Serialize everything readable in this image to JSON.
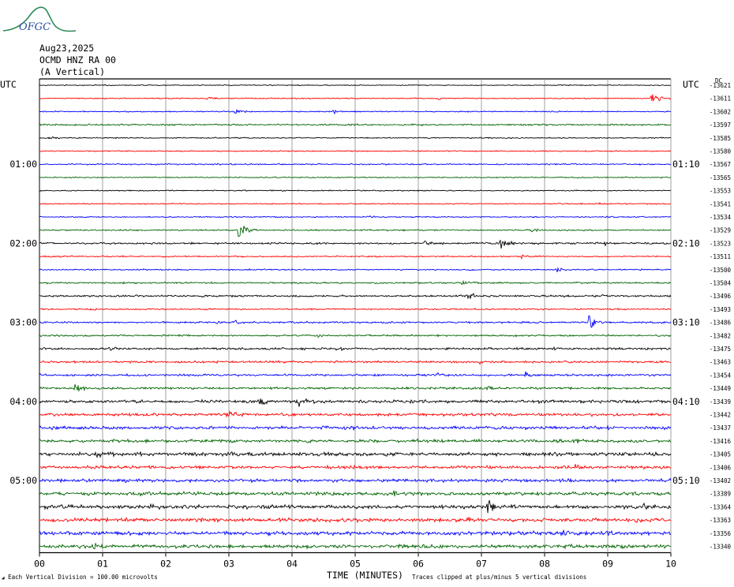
{
  "logo": {
    "text": "OFGC",
    "colors": {
      "wave": "#2e8b57",
      "text": "#2a4f9f"
    }
  },
  "header": {
    "date": "Aug23,2025",
    "station": "OCMD HNZ RA 00",
    "component": "(A Vertical)"
  },
  "axis": {
    "left_tz": "UTC",
    "right_tz": "UTC",
    "right_unit_label": "DC",
    "xlabel": "TIME (MINUTES)",
    "x_ticks": [
      "00",
      "01",
      "02",
      "03",
      "04",
      "05",
      "06",
      "07",
      "08",
      "09",
      "10"
    ]
  },
  "footer": {
    "scale_note": "Each Vertical Division =  100.00 microvolts",
    "clip_note": "Traces clipped at plus/minus 5 vertical divisions"
  },
  "chart_data": {
    "type": "line",
    "title": "",
    "xlabel": "TIME (MINUTES)",
    "ylabel": "",
    "xlim": [
      0,
      10
    ],
    "grid": true,
    "trace_colors": [
      "#000000",
      "#ff0000",
      "#0000ff",
      "#006400"
    ],
    "left_hour_labels": [
      {
        "trace": 6,
        "label": "01:00"
      },
      {
        "trace": 12,
        "label": "02:00"
      },
      {
        "trace": 18,
        "label": "03:00"
      },
      {
        "trace": 24,
        "label": "04:00"
      },
      {
        "trace": 30,
        "label": "05:00"
      }
    ],
    "right_hour_labels": [
      {
        "trace": 6,
        "label": "01:10"
      },
      {
        "trace": 12,
        "label": "02:10"
      },
      {
        "trace": 18,
        "label": "03:10"
      },
      {
        "trace": 24,
        "label": "04:10"
      },
      {
        "trace": 30,
        "label": "05:10"
      }
    ],
    "dc_offsets": [
      -13621,
      -13611,
      -13602,
      -13597,
      -13585,
      -13580,
      -13567,
      -13565,
      -13553,
      -13541,
      -13534,
      -13529,
      -13523,
      -13511,
      -13500,
      -13504,
      -13496,
      -13493,
      -13486,
      -13482,
      -13475,
      -13463,
      -13454,
      -13449,
      -13439,
      -13442,
      -13437,
      -13416,
      -13405,
      -13406,
      -13402,
      -13389,
      -13364,
      -13363,
      -13356,
      -13340
    ],
    "noise_level": [
      0.4,
      0.5,
      0.5,
      0.7,
      0.5,
      0.5,
      0.6,
      0.5,
      0.5,
      0.5,
      0.5,
      0.6,
      0.8,
      0.6,
      0.6,
      0.7,
      0.8,
      0.6,
      0.8,
      0.8,
      0.9,
      0.9,
      0.9,
      1.0,
      1.3,
      1.3,
      1.4,
      1.3,
      1.5,
      1.4,
      1.4,
      1.5,
      1.6,
      1.6,
      1.6,
      1.6
    ],
    "events": [
      {
        "trace": 1,
        "minute": 2.65,
        "amp": 0.8
      },
      {
        "trace": 1,
        "minute": 6.3,
        "amp": 1.0
      },
      {
        "trace": 1,
        "minute": 9.7,
        "amp": 3.5
      },
      {
        "trace": 2,
        "minute": 3.1,
        "amp": 1.2
      },
      {
        "trace": 2,
        "minute": 4.65,
        "amp": 1.5
      },
      {
        "trace": 4,
        "minute": 0.15,
        "amp": 1.0
      },
      {
        "trace": 9,
        "minute": 8.8,
        "amp": 0.8
      },
      {
        "trace": 10,
        "minute": 5.2,
        "amp": 1.0
      },
      {
        "trace": 10,
        "minute": 9.0,
        "amp": 0.8
      },
      {
        "trace": 11,
        "minute": 3.15,
        "amp": 6.0
      },
      {
        "trace": 11,
        "minute": 7.8,
        "amp": 1.0
      },
      {
        "trace": 12,
        "minute": 6.1,
        "amp": 1.5
      },
      {
        "trace": 12,
        "minute": 7.3,
        "amp": 3.0
      },
      {
        "trace": 12,
        "minute": 8.95,
        "amp": 1.0
      },
      {
        "trace": 13,
        "minute": 7.65,
        "amp": 1.5
      },
      {
        "trace": 14,
        "minute": 8.2,
        "amp": 1.5
      },
      {
        "trace": 15,
        "minute": 6.7,
        "amp": 1.5
      },
      {
        "trace": 16,
        "minute": 1.5,
        "amp": 0.8
      },
      {
        "trace": 16,
        "minute": 6.8,
        "amp": 2.0
      },
      {
        "trace": 16,
        "minute": 8.9,
        "amp": 1.5
      },
      {
        "trace": 17,
        "minute": 0.8,
        "amp": 1.0
      },
      {
        "trace": 18,
        "minute": 2.8,
        "amp": 1.0
      },
      {
        "trace": 18,
        "minute": 3.1,
        "amp": 1.0
      },
      {
        "trace": 18,
        "minute": 8.7,
        "amp": 4.5
      },
      {
        "trace": 19,
        "minute": 4.4,
        "amp": 1.2
      },
      {
        "trace": 20,
        "minute": 1.1,
        "amp": 1.0
      },
      {
        "trace": 20,
        "minute": 4.7,
        "amp": 1.5
      },
      {
        "trace": 20,
        "minute": 8.15,
        "amp": 1.0
      },
      {
        "trace": 21,
        "minute": 6.95,
        "amp": 2.0
      },
      {
        "trace": 21,
        "minute": 8.7,
        "amp": 1.0
      },
      {
        "trace": 22,
        "minute": 2.3,
        "amp": 1.0
      },
      {
        "trace": 22,
        "minute": 6.3,
        "amp": 1.2
      },
      {
        "trace": 22,
        "minute": 7.7,
        "amp": 1.5
      },
      {
        "trace": 23,
        "minute": 0.55,
        "amp": 3.0
      },
      {
        "trace": 23,
        "minute": 7.1,
        "amp": 1.5
      },
      {
        "trace": 24,
        "minute": 3.5,
        "amp": 2.5
      },
      {
        "trace": 24,
        "minute": 4.1,
        "amp": 2.5
      },
      {
        "trace": 25,
        "minute": 2.95,
        "amp": 1.8
      },
      {
        "trace": 26,
        "minute": 0.2,
        "amp": 1.2
      },
      {
        "trace": 26,
        "minute": 4.5,
        "amp": 1.5
      },
      {
        "trace": 27,
        "minute": 8.45,
        "amp": 1.8
      },
      {
        "trace": 28,
        "minute": 0.9,
        "amp": 2.0
      },
      {
        "trace": 28,
        "minute": 1.55,
        "amp": 1.5
      },
      {
        "trace": 28,
        "minute": 3.05,
        "amp": 1.5
      },
      {
        "trace": 29,
        "minute": 8.5,
        "amp": 2.0
      },
      {
        "trace": 30,
        "minute": 1.3,
        "amp": 1.0
      },
      {
        "trace": 31,
        "minute": 5.6,
        "amp": 1.8
      },
      {
        "trace": 31,
        "minute": 9.4,
        "amp": 1.5
      },
      {
        "trace": 32,
        "minute": 1.75,
        "amp": 2.5
      },
      {
        "trace": 32,
        "minute": 7.1,
        "amp": 4.0
      },
      {
        "trace": 32,
        "minute": 9.55,
        "amp": 1.5
      },
      {
        "trace": 33,
        "minute": 6.75,
        "amp": 1.5
      },
      {
        "trace": 33,
        "minute": 9.45,
        "amp": 2.5
      },
      {
        "trace": 34,
        "minute": 3.6,
        "amp": 1.5
      },
      {
        "trace": 34,
        "minute": 8.3,
        "amp": 1.8
      },
      {
        "trace": 35,
        "minute": 0.85,
        "amp": 2.0
      },
      {
        "trace": 35,
        "minute": 4.2,
        "amp": 1.5
      }
    ]
  }
}
